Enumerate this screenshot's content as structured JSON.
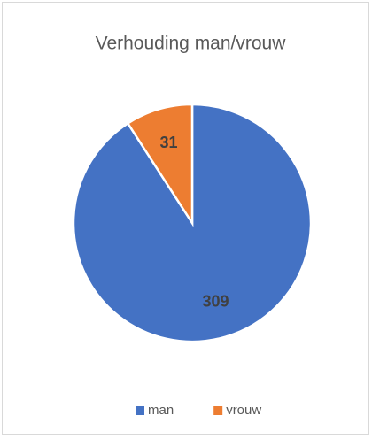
{
  "chart_data": {
    "type": "pie",
    "title": "Verhouding man/vrouw",
    "categories": [
      "man",
      "vrouw"
    ],
    "values": [
      309,
      31
    ],
    "colors": [
      "#4472c4",
      "#ed7d31"
    ],
    "legend": "bottom"
  }
}
